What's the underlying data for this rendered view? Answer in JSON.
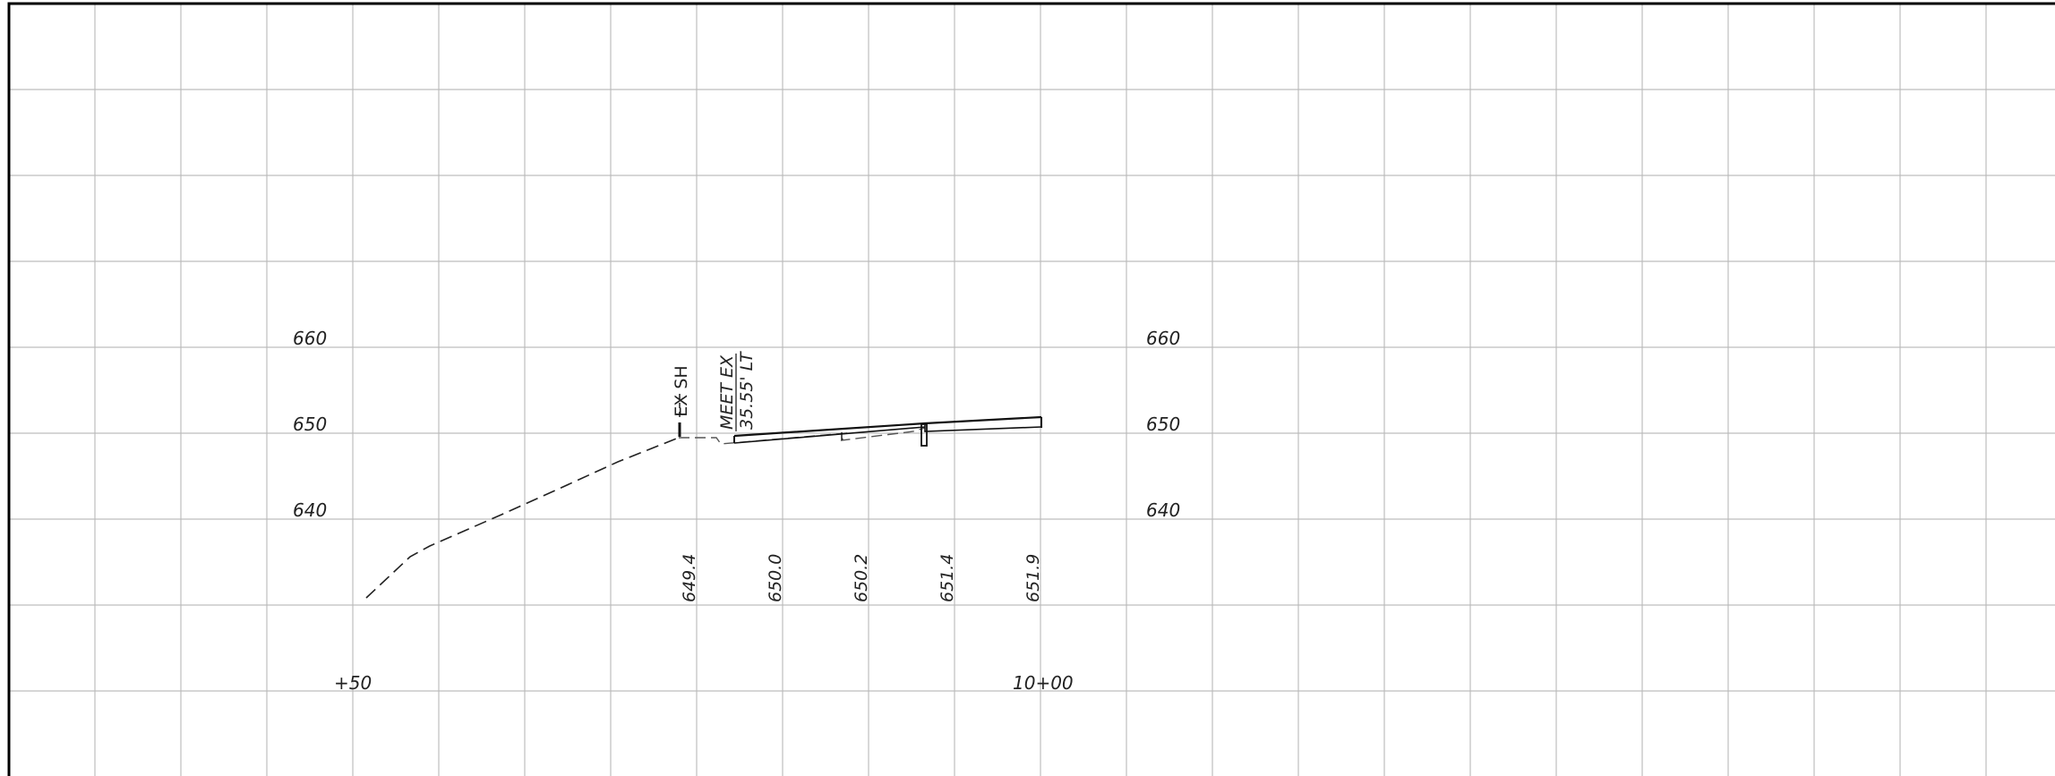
{
  "diagram": {
    "elevation_labels_left": [
      "660",
      "650",
      "640"
    ],
    "elevation_labels_right": [
      "660",
      "650",
      "640"
    ],
    "station_labels": [
      "+50",
      "10+00"
    ],
    "grade_values": [
      "649.4",
      "650.0",
      "650.2",
      "651.4",
      "651.9"
    ],
    "annotations": {
      "ex_sh": "EX SH",
      "meet_ex": "MEET EX",
      "offset": "35.55' LT"
    },
    "colors": {
      "grid": "#bdbdbd",
      "border": "#000000",
      "ink": "#222222"
    }
  }
}
